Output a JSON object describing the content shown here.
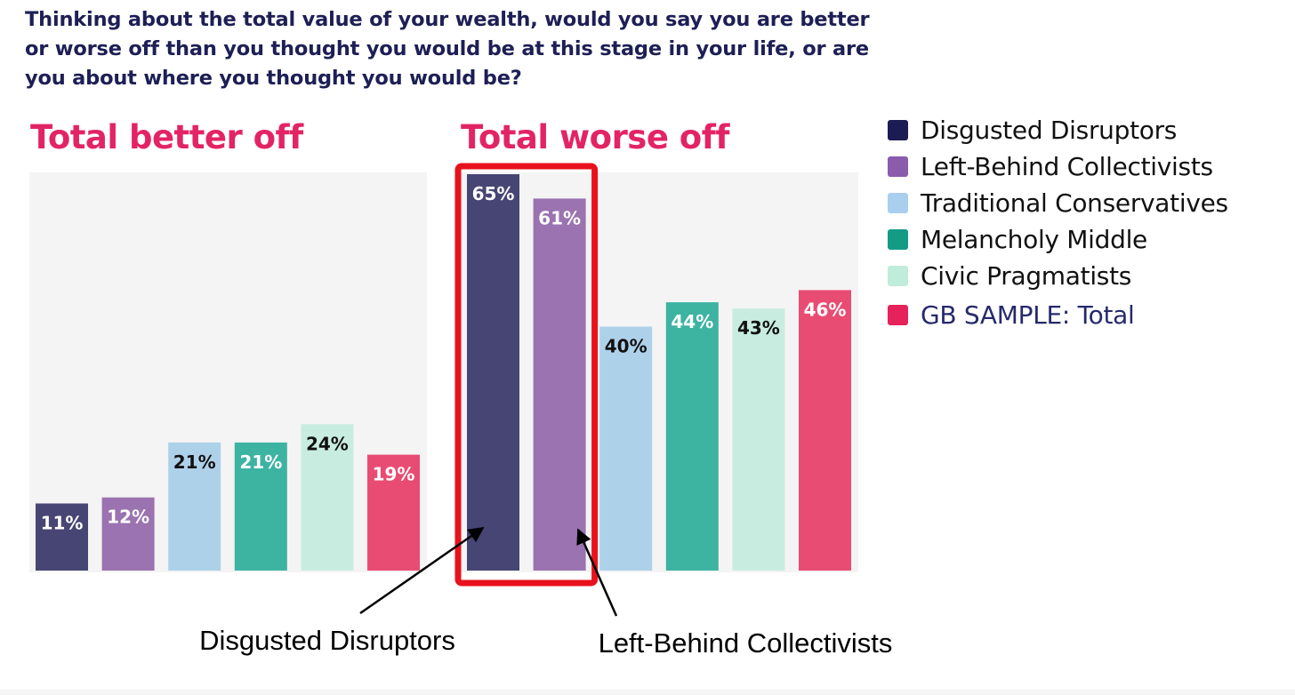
{
  "question": "Thinking about the total value of your wealth, would you say you are better or worse off than you thought you would be at this stage in your life, or are you about where you thought you would be?",
  "chart_data": {
    "type": "bar",
    "categories": [
      "Disgusted Disruptors",
      "Left-Behind Collectivists",
      "Traditional Conservatives",
      "Melancholy Middle",
      "Civic Pragmatists",
      "GB SAMPLE: Total"
    ],
    "colors": [
      "#474573",
      "#9a73b0",
      "#aed1ea",
      "#3db3a2",
      "#c8ede0",
      "#e94c72"
    ],
    "label_colors": [
      "#ffffff",
      "#ffffff",
      "#111111",
      "#ffffff",
      "#111111",
      "#ffffff"
    ],
    "legend_swatch_colors": [
      "#1c1c54",
      "#8a5cab",
      "#a9cfee",
      "#139b86",
      "#c0ecdb",
      "#e5225b"
    ],
    "panels": [
      {
        "title": "Total better off",
        "values": [
          11,
          12,
          21,
          21,
          24,
          19
        ],
        "labels": [
          "11%",
          "12%",
          "21%",
          "21%",
          "24%",
          "19%"
        ]
      },
      {
        "title": "Total worse off",
        "values": [
          65,
          61,
          40,
          44,
          43,
          46
        ],
        "labels": [
          "65%",
          "61%",
          "40%",
          "44%",
          "43%",
          "46%"
        ]
      }
    ],
    "ylim": [
      0,
      65
    ],
    "legend_position": "right",
    "highlight": {
      "panel": 1,
      "categories": [
        "Disgusted Disruptors",
        "Left-Behind Collectivists"
      ],
      "color": "#e8121c"
    },
    "annotations": [
      {
        "text": "Disgusted Disruptors",
        "points_to": "Disgusted Disruptors"
      },
      {
        "text": "Left-Behind Collectivists",
        "points_to": "Left-Behind Collectivists"
      }
    ]
  }
}
